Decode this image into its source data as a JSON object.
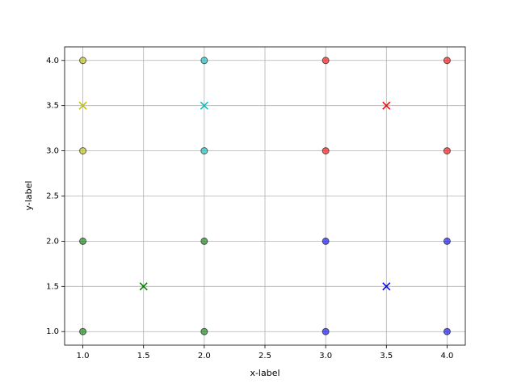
{
  "chart_data": {
    "type": "scatter",
    "xlabel": "x-label",
    "ylabel": "y-label",
    "xlim": [
      0.85,
      4.15
    ],
    "ylim": [
      0.85,
      4.15
    ],
    "xticks": [
      {
        "value": 1,
        "label": "1.0"
      },
      {
        "value": 1.5,
        "label": "1.5"
      },
      {
        "value": 2,
        "label": "2.0"
      },
      {
        "value": 2.5,
        "label": "2.5"
      },
      {
        "value": 3,
        "label": "3.0"
      },
      {
        "value": 3.5,
        "label": "3.5"
      },
      {
        "value": 4,
        "label": "4.0"
      }
    ],
    "yticks": [
      {
        "value": 1,
        "label": "1.0"
      },
      {
        "value": 1.5,
        "label": "1.5"
      },
      {
        "value": 2,
        "label": "2.0"
      },
      {
        "value": 2.5,
        "label": "2.5"
      },
      {
        "value": 3,
        "label": "3.0"
      },
      {
        "value": 3.5,
        "label": "3.5"
      },
      {
        "value": 4,
        "label": "4.0"
      }
    ],
    "grid": true,
    "series": [
      {
        "color": "#bfbf00",
        "marker": "o",
        "x": [
          1,
          1
        ],
        "y": [
          4,
          3
        ]
      },
      {
        "color": "#00bfbf",
        "marker": "o",
        "x": [
          2,
          2
        ],
        "y": [
          4,
          3
        ]
      },
      {
        "color": "#ff0000",
        "marker": "o",
        "x": [
          3,
          4,
          3,
          4
        ],
        "y": [
          4,
          4,
          3,
          3
        ]
      },
      {
        "color": "#008000",
        "marker": "o",
        "x": [
          1,
          1,
          2,
          2
        ],
        "y": [
          2,
          1,
          2,
          1
        ]
      },
      {
        "color": "#0000ff",
        "marker": "o",
        "x": [
          3,
          4,
          3,
          4
        ],
        "y": [
          2,
          2,
          1,
          1
        ]
      },
      {
        "color": "#bfbf00",
        "marker": "x",
        "x": [
          1
        ],
        "y": [
          3.5
        ]
      },
      {
        "color": "#00bfbf",
        "marker": "x",
        "x": [
          2
        ],
        "y": [
          3.5
        ]
      },
      {
        "color": "#ff0000",
        "marker": "x",
        "x": [
          3.5
        ],
        "y": [
          3.5
        ]
      },
      {
        "color": "#008000",
        "marker": "x",
        "x": [
          1.5
        ],
        "y": [
          1.5
        ]
      },
      {
        "color": "#0000ff",
        "marker": "x",
        "x": [
          3.5
        ],
        "y": [
          1.5
        ]
      }
    ]
  }
}
